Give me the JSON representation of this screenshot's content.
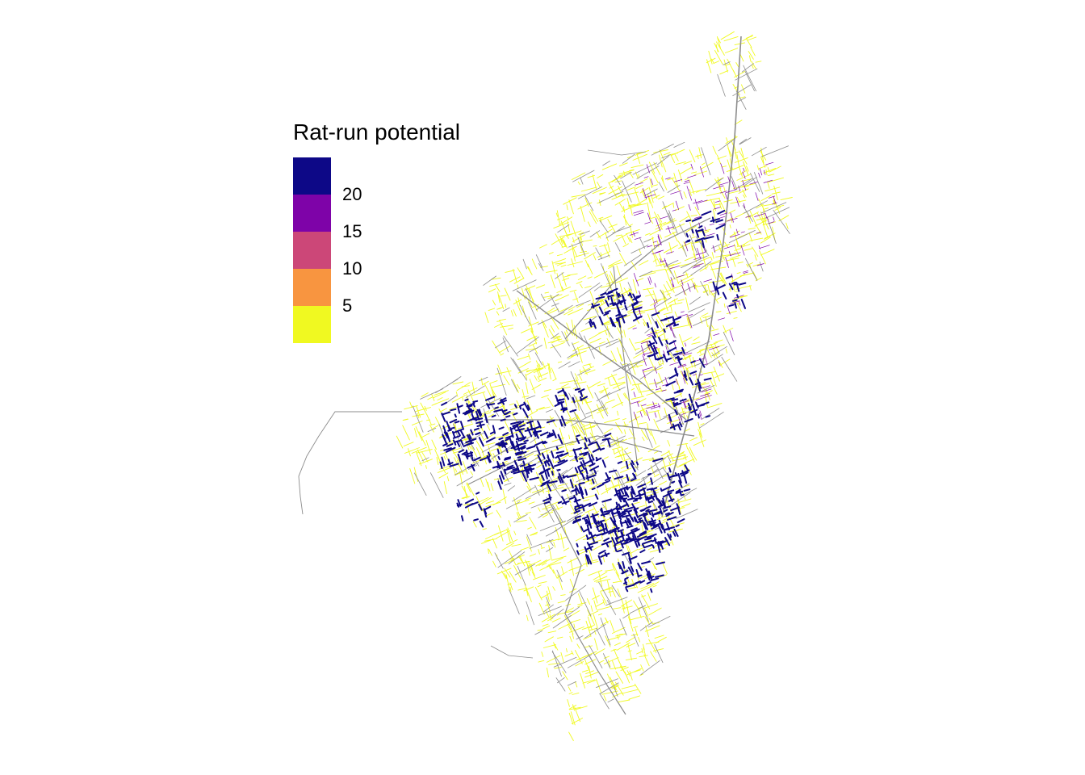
{
  "legend": {
    "title": "Rat-run potential",
    "bins": [
      {
        "color": "#0d0887",
        "range": "20+"
      },
      {
        "color": "#7e03a8",
        "range": "15-20"
      },
      {
        "color": "#cc4778",
        "range": "10-15"
      },
      {
        "color": "#f89540",
        "range": "5-10"
      },
      {
        "color": "#f0f921",
        "range": "0-5"
      }
    ],
    "ticks": [
      "20",
      "15",
      "10",
      "5"
    ]
  },
  "map": {
    "subject": "road network",
    "colors": {
      "low_potential": "#f0f921",
      "high_potential": "#0d0887",
      "mid_potential": "#7e03a8",
      "arterial_roads": "#8c8c8c",
      "background": "#ffffff"
    }
  }
}
